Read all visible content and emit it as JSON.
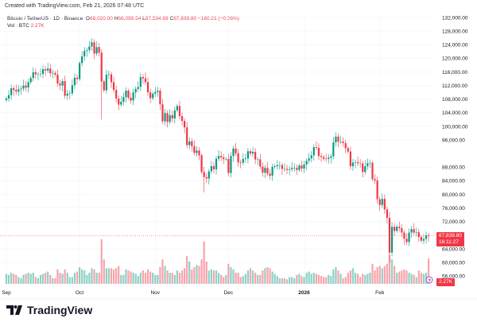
{
  "header": {
    "created": "Created with TradingView.com, Feb 21, 2026 07:48 UTC"
  },
  "legend": {
    "symbol": "Bitcoin / TetherUS · 1D · Binance",
    "o_label": "O",
    "o": "68,020.00",
    "h_label": "H",
    "h": "68,099.54",
    "l_label": "L",
    "l": "67,534.69",
    "c_label": "C",
    "c": "67,839.80",
    "change": "−180.21 (−0.26%)",
    "vol_label": "Vol · BTC",
    "vol": "2.27K"
  },
  "price_tag": {
    "price": "67,839.80",
    "countdown": "16:11:27"
  },
  "volume_tag": "2.27K",
  "colors": {
    "up": "#089981",
    "down": "#f23645"
  },
  "logo": "TradingView",
  "chart_data": {
    "type": "candlestick",
    "y_ticks": [
      "132,000.00",
      "128,000.00",
      "124,000.00",
      "120,000.00",
      "116,000.00",
      "112,000.00",
      "108,000.00",
      "104,000.00",
      "100,000.00",
      "96,000.00",
      "88,000.00",
      "84,000.00",
      "80,000.00",
      "76,000.00",
      "72,000.00",
      "64,000.00",
      "60,000.00",
      "56,000.00"
    ],
    "x_ticks": [
      "Sep",
      "Oct",
      "Nov",
      "Dec",
      "2026",
      "Feb"
    ],
    "start": "2025-09-01",
    "close_k": [
      108.2,
      109.2,
      111.2,
      110.7,
      110.2,
      110.9,
      111.1,
      112.0,
      111.4,
      113.0,
      114.2,
      115.9,
      115.3,
      115.3,
      115.4,
      116.8,
      116.4,
      117.0,
      115.6,
      115.7,
      115.2,
      112.6,
      112.0,
      113.3,
      109.0,
      109.6,
      109.7,
      112.1,
      114.3,
      113.9,
      118.6,
      120.6,
      122.2,
      122.4,
      123.5,
      124.7,
      121.4,
      123.3,
      121.7,
      113.2,
      110.6,
      115.2,
      115.3,
      113.0,
      110.7,
      108.2,
      106.4,
      107.2,
      108.6,
      110.5,
      108.4,
      107.6,
      110.0,
      111.0,
      111.6,
      114.5,
      114.1,
      113.0,
      110.0,
      108.3,
      109.6,
      110.1,
      110.5,
      106.5,
      101.5,
      103.9,
      101.3,
      103.3,
      102.3,
      104.7,
      106.0,
      103.0,
      101.6,
      99.7,
      94.5,
      95.6,
      94.2,
      92.2,
      92.9,
      91.5,
      86.6,
      85.1,
      84.7,
      86.8,
      88.3,
      87.4,
      90.5,
      91.3,
      90.9,
      90.4,
      90.4,
      86.3,
      91.3,
      93.5,
      92.1,
      89.4,
      89.3,
      90.4,
      90.6,
      92.7,
      92.0,
      92.5,
      90.3,
      90.3,
      88.2,
      86.4,
      87.8,
      86.1,
      85.5,
      88.1,
      88.3,
      88.6,
      88.6,
      87.5,
      87.5,
      87.2,
      87.4,
      87.8,
      87.8,
      87.2,
      88.5,
      87.6,
      88.8,
      89.9,
      90.6,
      91.5,
      93.9,
      93.7,
      91.3,
      91.0,
      90.5,
      90.4,
      90.8,
      91.2,
      95.3,
      97.0,
      95.5,
      95.5,
      95.1,
      93.6,
      92.6,
      88.3,
      89.4,
      89.5,
      89.2,
      89.1,
      86.6,
      88.3,
      89.2,
      89.3,
      84.5,
      84.1,
      78.6,
      76.9,
      78.7,
      75.6,
      73.1,
      62.9,
      70.5,
      69.3,
      70.5,
      70.1,
      68.8,
      67.0,
      66.0,
      68.8,
      69.8,
      68.8,
      68.9,
      67.5,
      66.4,
      66.9,
      68.0,
      67.84
    ],
    "volume_k": [
      0.9,
      0.8,
      1.0,
      0.9,
      0.8,
      0.6,
      0.5,
      0.8,
      0.9,
      1.0,
      0.9,
      1.0,
      0.6,
      0.5,
      0.8,
      0.9,
      1.0,
      1.1,
      0.8,
      0.5,
      0.5,
      1.3,
      1.0,
      0.9,
      1.3,
      1.0,
      0.6,
      0.6,
      1.0,
      1.1,
      1.5,
      1.3,
      1.2,
      0.8,
      1.0,
      1.4,
      1.3,
      1.0,
      1.0,
      4.0,
      2.2,
      1.4,
      1.4,
      1.4,
      1.3,
      1.4,
      1.6,
      0.8,
      0.8,
      1.3,
      1.2,
      1.1,
      1.0,
      0.9,
      0.7,
      1.0,
      1.2,
      1.0,
      1.3,
      1.1,
      1.0,
      0.8,
      0.8,
      1.5,
      2.2,
      1.6,
      1.2,
      1.0,
      1.0,
      0.8,
      1.2,
      1.0,
      1.2,
      1.4,
      2.5,
      2.0,
      1.3,
      1.5,
      1.7,
      1.6,
      2.2,
      3.8,
      2.0,
      1.2,
      1.3,
      1.2,
      1.2,
      1.0,
      0.8,
      0.6,
      0.8,
      1.8,
      1.5,
      1.3,
      1.0,
      1.0,
      0.6,
      0.7,
      0.9,
      1.2,
      1.4,
      1.2,
      1.0,
      0.8,
      0.8,
      1.2,
      1.4,
      1.5,
      1.4,
      1.1,
      0.9,
      0.7,
      0.5,
      0.5,
      0.5,
      0.4,
      0.6,
      0.6,
      0.5,
      0.8,
      0.9,
      0.7,
      0.6,
      1.0,
      1.1,
      0.9,
      1.0,
      0.9,
      0.8,
      0.7,
      0.6,
      0.6,
      0.8,
      0.7,
      1.3,
      1.5,
      1.2,
      0.9,
      0.5,
      0.6,
      1.0,
      1.2,
      1.4,
      1.0,
      0.9,
      0.6,
      0.9,
      0.8,
      0.9,
      1.0,
      1.8,
      1.2,
      1.5,
      1.6,
      1.4,
      1.6,
      1.8,
      2.6,
      2.2,
      1.6,
      1.0,
      1.1,
      1.2,
      1.3,
      1.2,
      1.0,
      0.9,
      0.8,
      0.6,
      1.2,
      1.0,
      0.9,
      1.0,
      2.27
    ]
  }
}
